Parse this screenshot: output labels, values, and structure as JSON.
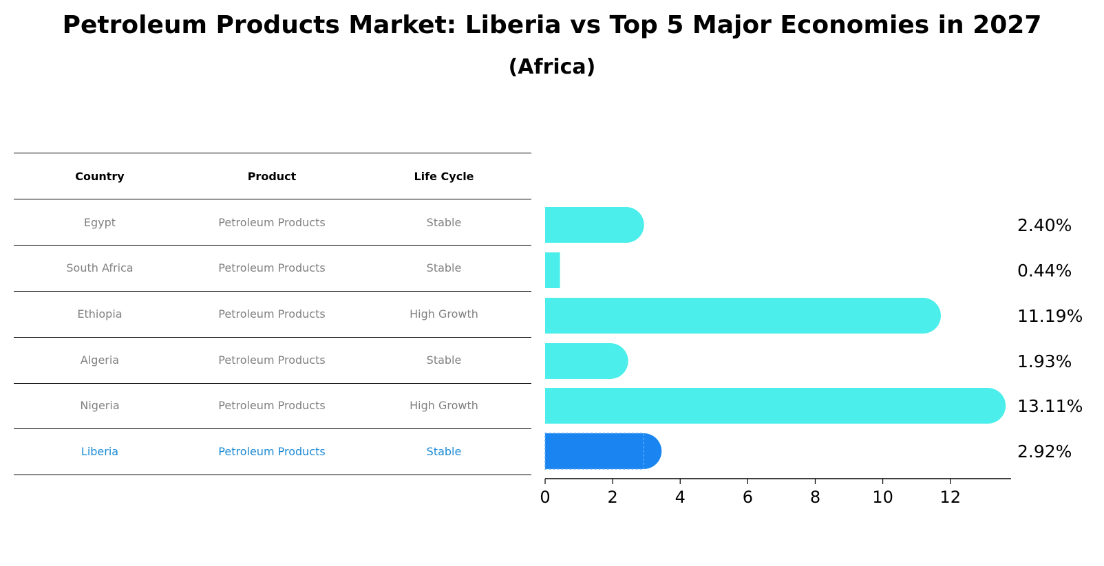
{
  "title": "Petroleum Products Market: Liberia vs Top 5 Major Economies in 2027",
  "subtitle": "(Africa)",
  "table": {
    "headers": [
      "Country",
      "Product",
      "Life Cycle"
    ],
    "rows": [
      {
        "country": "Egypt",
        "product": "Petroleum Products",
        "lifecycle": "Stable"
      },
      {
        "country": "South Africa",
        "product": "Petroleum Products",
        "lifecycle": "Stable"
      },
      {
        "country": "Ethiopia",
        "product": "Petroleum Products",
        "lifecycle": "High Growth"
      },
      {
        "country": "Algeria",
        "product": "Petroleum Products",
        "lifecycle": "Stable"
      },
      {
        "country": "Nigeria",
        "product": "Petroleum Products",
        "lifecycle": "High Growth"
      },
      {
        "country": "Liberia",
        "product": "Petroleum Products",
        "lifecycle": "Stable"
      }
    ]
  },
  "colors": {
    "bar": "#4beeea",
    "highlight_bar": "#1a85f1",
    "highlight_text": "#1a8ad4",
    "table_text": "#808080"
  },
  "chart_data": {
    "type": "bar",
    "orientation": "horizontal",
    "categories": [
      "Egypt",
      "South Africa",
      "Ethiopia",
      "Algeria",
      "Nigeria",
      "Liberia"
    ],
    "values": [
      2.4,
      0.44,
      11.19,
      1.93,
      13.11,
      2.92
    ],
    "labels": [
      "2.40%",
      "0.44%",
      "11.19%",
      "1.93%",
      "13.11%",
      "2.92%"
    ],
    "highlight": "Liberia",
    "xlim": [
      0,
      13.8
    ],
    "xticks": [
      0,
      2,
      4,
      6,
      8,
      10,
      12
    ],
    "xlabel": "",
    "ylabel": ""
  }
}
